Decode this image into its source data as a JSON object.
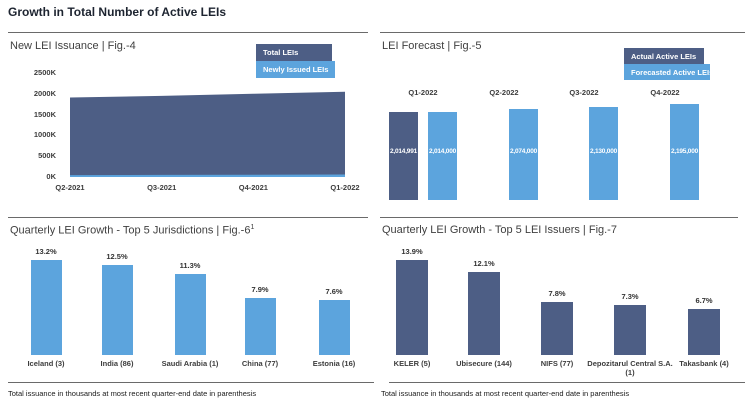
{
  "page": {
    "title": "Growth in Total Number of Active LEIs"
  },
  "colors": {
    "dark_blue": "#4d5e85",
    "light_blue": "#5ca4dd",
    "divider_gray": "#6a6a6a"
  },
  "chart_data": [
    {
      "id": "fig4",
      "type": "area",
      "title": "New LEI Issuance | Fig.-4",
      "categories": [
        "Q2-2021",
        "Q3-2021",
        "Q4-2021",
        "Q1-2022"
      ],
      "series": [
        {
          "name": "Total LEIs",
          "color": "#4d5e85",
          "values_thousands": [
            1910,
            1950,
            2000,
            2050
          ]
        },
        {
          "name": "Newly Issued LEIs",
          "color": "#5ca4dd",
          "values_thousands": [
            45,
            50,
            55,
            60
          ]
        }
      ],
      "values_approximate": true,
      "ylim_thousands": [
        0,
        2500
      ],
      "yticks": [
        "2500K",
        "2000K",
        "1500K",
        "1000K",
        "500K",
        "0K"
      ],
      "legend_position": "top-right",
      "grid": false
    },
    {
      "id": "fig5",
      "type": "bar",
      "title": "LEI Forecast | Fig.-5",
      "categories": [
        "Q1-2022",
        "Q2-2022",
        "Q3-2022",
        "Q4-2022"
      ],
      "series": [
        {
          "name": "Actual Active LEIs",
          "color": "#4d5e85",
          "values": [
            2014991,
            null,
            null,
            null
          ],
          "labels": [
            "2,014,991",
            "",
            "",
            ""
          ]
        },
        {
          "name": "Forecasted Active LEIs",
          "color": "#5ca4dd",
          "values": [
            2014000,
            2074000,
            2130000,
            2195000
          ],
          "labels": [
            "2,014,000",
            "2,074,000",
            "2,130,000",
            "2,195,000"
          ]
        }
      ],
      "legend_position": "top-right",
      "category_labels_position": "above-bars",
      "grid": false
    },
    {
      "id": "fig6",
      "type": "bar",
      "title": "Quarterly LEI Growth - Top 5 Jurisdictions | Fig.-6",
      "title_superscript": "1",
      "categories": [
        "Iceland (3)",
        "India (86)",
        "Saudi Arabia (1)",
        "China (77)",
        "Estonia (16)"
      ],
      "values_percent": [
        13.2,
        12.5,
        11.3,
        7.9,
        7.6
      ],
      "labels": [
        "13.2%",
        "12.5%",
        "11.3%",
        "7.9%",
        "7.6%"
      ],
      "bar_color": "#5ca4dd",
      "footnote": "Total issuance in thousands at most recent quarter-end date in parenthesis",
      "grid": false
    },
    {
      "id": "fig7",
      "type": "bar",
      "title": "Quarterly LEI Growth - Top 5 LEI Issuers | Fig.-7",
      "categories": [
        "KELER (5)",
        "Ubisecure (144)",
        "NIFS (77)",
        "Depozitarul Central S.A. (1)",
        "Takasbank (4)"
      ],
      "values_percent": [
        13.9,
        12.1,
        7.8,
        7.3,
        6.7
      ],
      "labels": [
        "13.9%",
        "12.1%",
        "7.8%",
        "7.3%",
        "6.7%"
      ],
      "bar_color": "#4d5e85",
      "footnote": "Total issuance in thousands at most recent quarter-end date in parenthesis",
      "grid": false
    }
  ]
}
